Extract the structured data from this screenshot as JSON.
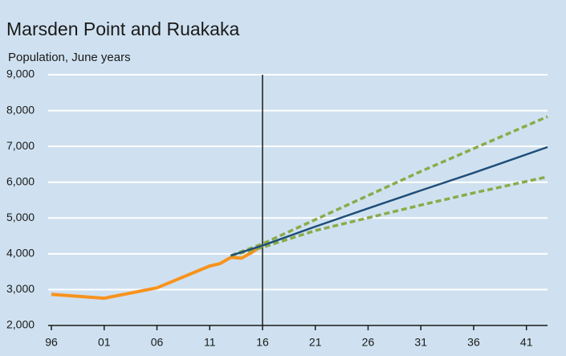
{
  "chart_data": {
    "type": "line",
    "title": "Marsden Point and Ruakaka",
    "subtitle": "Population, June years",
    "xlim": [
      1996,
      2043
    ],
    "xticks": [
      {
        "value": 1996,
        "label": "96"
      },
      {
        "value": 2001,
        "label": "01"
      },
      {
        "value": 2006,
        "label": "06"
      },
      {
        "value": 2011,
        "label": "11"
      },
      {
        "value": 2016,
        "label": "16"
      },
      {
        "value": 2021,
        "label": "21"
      },
      {
        "value": 2026,
        "label": "26"
      },
      {
        "value": 2031,
        "label": "31"
      },
      {
        "value": 2036,
        "label": "36"
      },
      {
        "value": 2041,
        "label": "41"
      }
    ],
    "ylim": [
      2000,
      9000
    ],
    "yticks": [
      {
        "value": 2000,
        "label": "2,000"
      },
      {
        "value": 3000,
        "label": "3,000"
      },
      {
        "value": 4000,
        "label": "4,000"
      },
      {
        "value": 5000,
        "label": "5,000"
      },
      {
        "value": 6000,
        "label": "6,000"
      },
      {
        "value": 7000,
        "label": "7,000"
      },
      {
        "value": 8000,
        "label": "8,000"
      },
      {
        "value": 9000,
        "label": "9,000"
      }
    ],
    "grid": true,
    "vline": 2016,
    "series": [
      {
        "color": "#f7931e",
        "dash": false,
        "width": 4,
        "x": [
          1996,
          2001,
          2006,
          2011,
          2012,
          2013,
          2014,
          2015,
          2016
        ],
        "values": [
          2870,
          2760,
          3050,
          3660,
          3730,
          3900,
          3880,
          4040,
          4240
        ]
      },
      {
        "color": "#8aab4a",
        "dash": true,
        "width": 3.5,
        "x": [
          2013,
          2016,
          2018,
          2031,
          2043
        ],
        "values": [
          3950,
          4280,
          4550,
          6300,
          7830
        ]
      },
      {
        "color": "#8aab4a",
        "dash": true,
        "width": 3.5,
        "x": [
          2013,
          2016,
          2021,
          2031,
          2036,
          2043
        ],
        "values": [
          3950,
          4180,
          4650,
          5360,
          5700,
          6150
        ]
      },
      {
        "color": "#1f4e79",
        "dash": false,
        "width": 2.5,
        "x": [
          2013,
          2016,
          2021,
          2026,
          2031,
          2036,
          2043
        ],
        "values": [
          3950,
          4230,
          4760,
          5270,
          5770,
          6260,
          6980
        ]
      }
    ]
  }
}
